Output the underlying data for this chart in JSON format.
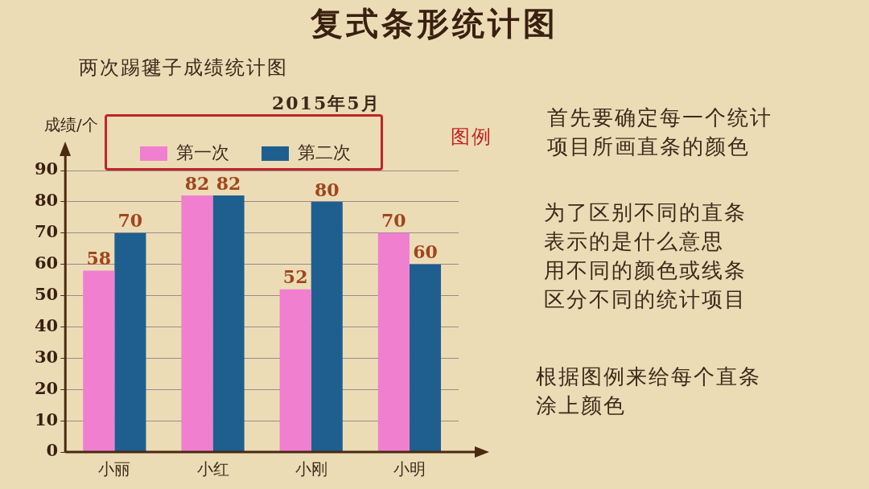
{
  "chart_data": {
    "type": "bar",
    "title": "复式条形统计图",
    "subtitle": "两次踢毽子成绩统计图",
    "ylabel": "成绩/个",
    "annotations": [
      "2015年5月",
      "图例",
      "首先要确定每一个统计项目所画直条的颜色",
      "为了区别不同的直条表示的是什么意思",
      "用不同的颜色或线条区分不同的统计项目",
      "根据图例来给每个直条涂上颜色"
    ],
    "categories": [
      "小丽",
      "小红",
      "小刚",
      "小明"
    ],
    "series": [
      {
        "name": "第一次",
        "color": "#f07fd0",
        "values": [
          58,
          82,
          52,
          70
        ]
      },
      {
        "name": "第二次",
        "color": "#1f5f8f",
        "values": [
          70,
          82,
          80,
          60
        ]
      }
    ],
    "ylim": [
      0,
      90
    ],
    "yticks": [
      0,
      10,
      20,
      30,
      40,
      50,
      60,
      70,
      80,
      90
    ],
    "grid": "y",
    "legend": "top",
    "data_labels": true
  }
}
